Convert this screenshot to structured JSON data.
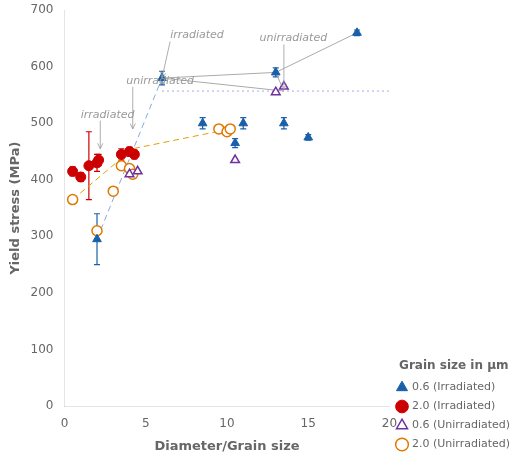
{
  "chart_data": {
    "type": "scatter",
    "xlabel": "Diameter/Grain size",
    "ylabel": "Yield stress (MPa)",
    "xlim": [
      0,
      20
    ],
    "ylim": [
      0,
      700
    ],
    "xticks": [
      0,
      5,
      10,
      15,
      20
    ],
    "yticks": [
      0,
      100,
      200,
      300,
      400,
      500,
      600,
      700
    ],
    "grid": false,
    "legend": "lower right",
    "legend_title": "Grain size in μm",
    "series": [
      {
        "type": "line",
        "line_style": "solid",
        "color": "#aaaaaa",
        "x": [
          6.0,
          13.0,
          18.0
        ],
        "values": [
          580,
          590,
          660
        ]
      },
      {
        "type": "line",
        "line_style": "solid",
        "color": "#aaaaaa",
        "x": [
          6.0,
          13.5
        ],
        "values": [
          580,
          557
        ]
      },
      {
        "type": "line",
        "line_style": "solid",
        "color": "#aaaaaa",
        "x": [
          13.0,
          13.5
        ],
        "values": [
          590,
          557
        ]
      },
      {
        "type": "line",
        "line_style": "dashed",
        "color": "#88aadd",
        "x": [
          2.0,
          6.0
        ],
        "values": [
          295,
          580
        ]
      },
      {
        "type": "line",
        "line_style": "dashed",
        "color": "#e0a000",
        "x": [
          0.5,
          4.2,
          10.2
        ],
        "values": [
          365,
          455,
          490
        ]
      },
      {
        "type": "line",
        "line_style": "dotted",
        "color": "#aaaadd",
        "x": [
          6.0,
          20
        ],
        "values": [
          557,
          557
        ]
      },
      {
        "name": "0.6 (Irradiated)",
        "type": "scatter",
        "marker": "triangle",
        "color": "#1a5fa8",
        "x": [
          2.0,
          6.0,
          8.5,
          10.5,
          11.0,
          13.0,
          13.5,
          15.0,
          18.0
        ],
        "values": [
          295,
          580,
          500,
          465,
          500,
          590,
          500,
          475,
          660
        ],
        "yerr": [
          45,
          12,
          10,
          8,
          10,
          8,
          10,
          5,
          5
        ]
      },
      {
        "name": "2.0 (Irradiated)",
        "type": "scatter",
        "marker": "circle",
        "color": "#cc0000",
        "x": [
          0.5,
          1.0,
          1.5,
          2.0,
          2.1,
          3.5,
          4.0,
          4.3
        ],
        "values": [
          415,
          405,
          425,
          430,
          435,
          445,
          450,
          445
        ],
        "yerr": [
          8,
          8,
          60,
          15,
          10,
          10,
          8,
          8
        ]
      },
      {
        "name": "0.6 (Unirradiated)",
        "type": "scatter",
        "marker": "open-triangle",
        "color": "#7030a0",
        "x": [
          4.0,
          4.5,
          10.5,
          13.0,
          13.5
        ],
        "values": [
          410,
          415,
          435,
          555,
          565
        ]
      },
      {
        "name": "2.0 (Unirradiated)",
        "type": "scatter",
        "marker": "open-circle",
        "color": "#e07800",
        "x": [
          0.5,
          2.0,
          3.0,
          3.5,
          4.0,
          4.2,
          9.5,
          10.0,
          10.2
        ],
        "values": [
          365,
          310,
          380,
          425,
          420,
          410,
          490,
          485,
          490
        ]
      }
    ],
    "annotations": [
      {
        "text": "irradiated",
        "xy": [
          6.0,
          580
        ],
        "xytext": [
          6.5,
          650
        ],
        "color": "#999999"
      },
      {
        "text": "unirradiated",
        "xy": [
          4.2,
          490
        ],
        "xytext": [
          3.8,
          570
        ],
        "color": "#999999"
      },
      {
        "text": "irradiated",
        "xy": [
          2.2,
          455
        ],
        "xytext": [
          1.0,
          510
        ],
        "color": "#999999"
      },
      {
        "text": "unirradiated",
        "xy": [
          13.5,
          560
        ],
        "xytext": [
          12.0,
          645
        ],
        "color": "#999999"
      }
    ]
  }
}
